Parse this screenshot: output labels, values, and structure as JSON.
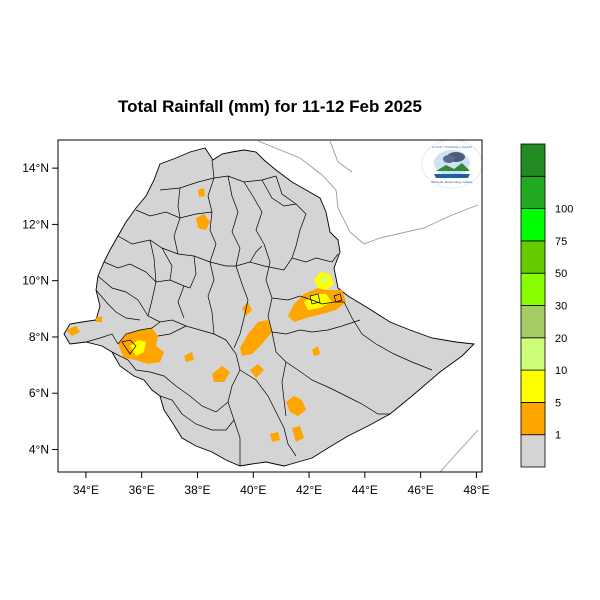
{
  "title": "Total Rainfall (mm) for 11-12 Feb 2025",
  "axes": {
    "x_ticks": [
      {
        "value": 34,
        "label": "34°E"
      },
      {
        "value": 36,
        "label": "36°E"
      },
      {
        "value": 38,
        "label": "38°E"
      },
      {
        "value": 40,
        "label": "40°E"
      },
      {
        "value": 42,
        "label": "42°E"
      },
      {
        "value": 44,
        "label": "44°E"
      },
      {
        "value": 46,
        "label": "46°E"
      },
      {
        "value": 48,
        "label": "48°E"
      }
    ],
    "y_ticks": [
      {
        "value": 4,
        "label": "4°N"
      },
      {
        "value": 6,
        "label": "6°N"
      },
      {
        "value": 8,
        "label": "8°N"
      },
      {
        "value": 10,
        "label": "10°N"
      },
      {
        "value": 12,
        "label": "12°N"
      },
      {
        "value": 14,
        "label": "14°N"
      }
    ],
    "lon_range": [
      33,
      48.2
    ],
    "lat_range": [
      3.2,
      15
    ]
  },
  "legend": {
    "colors": [
      "#d4d4d4",
      "#ffa500",
      "#ffff00",
      "#ccff77",
      "#a6cc66",
      "#88ff00",
      "#66cc00",
      "#00ff00",
      "#22aa22",
      "#228b22"
    ],
    "labels": [
      "1",
      "5",
      "10",
      "20",
      "30",
      "50",
      "75",
      "100"
    ]
  },
  "colors": {
    "land": "#d4d4d4",
    "border": "#000000",
    "outside_border": "#999999"
  },
  "logo": {
    "text_top": "የኢትዮጵያ ሚቲዎሮሎጂ ኢንስቲትዩት",
    "text_bottom": "Ethiopian Meteorology Institute"
  }
}
